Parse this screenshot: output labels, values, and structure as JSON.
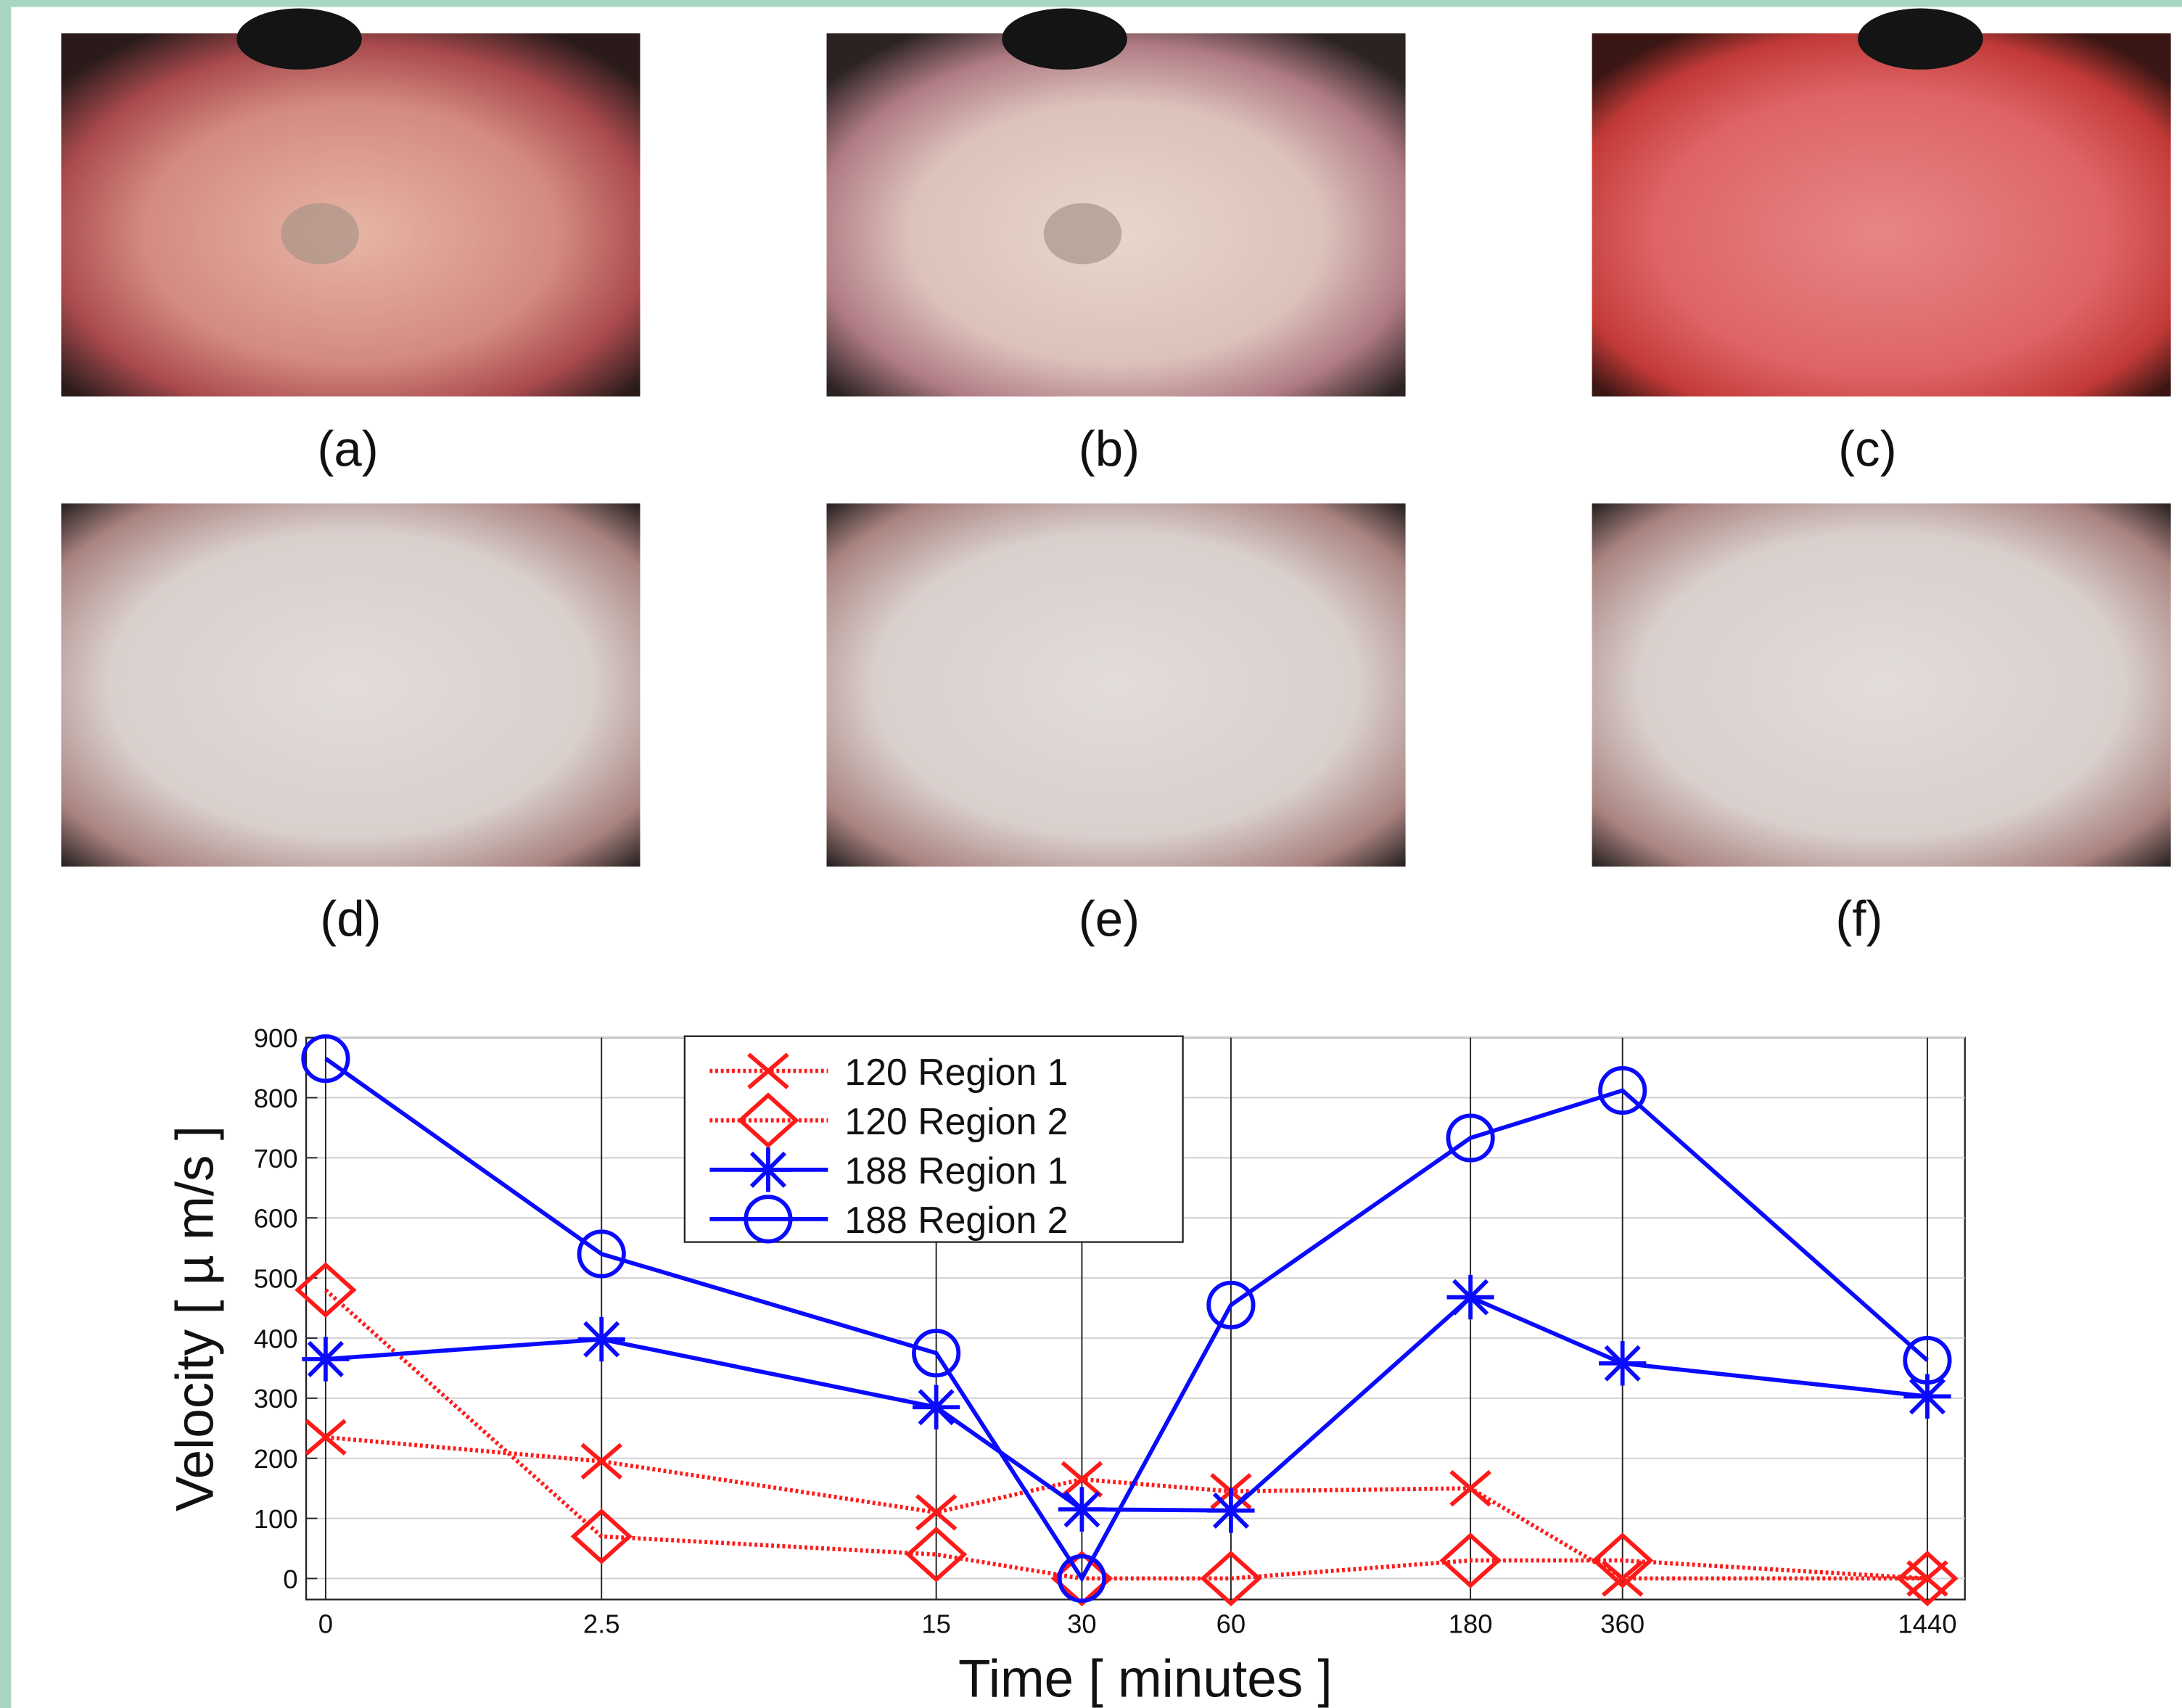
{
  "panels": [
    {
      "label": "(a)"
    },
    {
      "label": "(b)"
    },
    {
      "label": "(c)"
    },
    {
      "label": "(d)"
    },
    {
      "label": "(e)"
    },
    {
      "label": "(f)"
    }
  ],
  "chart_data": {
    "type": "line",
    "x_label": "Time [ minutes ]",
    "y_label": "Velocity [ µ m/s ]",
    "x": [
      0,
      2.5,
      15,
      30,
      60,
      180,
      360,
      1440
    ],
    "xscale": "log",
    "xlim": [
      0,
      1440
    ],
    "xticks": [
      0,
      2.5,
      15,
      30,
      60,
      180,
      360,
      1440
    ],
    "ylim": [
      -35,
      900
    ],
    "yticks": [
      0,
      100,
      200,
      300,
      400,
      500,
      600,
      700,
      800,
      900
    ],
    "grid": true,
    "legend": "upper center",
    "series": [
      {
        "name": "120 Region 1",
        "color": "#ff1a1a",
        "linestyle": "dotted",
        "marker": "x",
        "values": [
          235,
          195,
          110,
          165,
          145,
          150,
          0,
          0
        ]
      },
      {
        "name": "120 Region 2",
        "color": "#ff1a1a",
        "linestyle": "dotted",
        "marker": "diamond",
        "values": [
          480,
          70,
          40,
          0,
          0,
          30,
          30,
          0
        ]
      },
      {
        "name": "188 Region 1",
        "color": "#0a0aff",
        "linestyle": "solid",
        "marker": "asterisk",
        "values": [
          365,
          398,
          285,
          115,
          113,
          468,
          358,
          303
        ]
      },
      {
        "name": "188 Region 2",
        "color": "#0a0aff",
        "linestyle": "solid",
        "marker": "circle",
        "values": [
          865,
          540,
          375,
          0,
          455,
          733,
          812,
          363
        ]
      }
    ]
  }
}
